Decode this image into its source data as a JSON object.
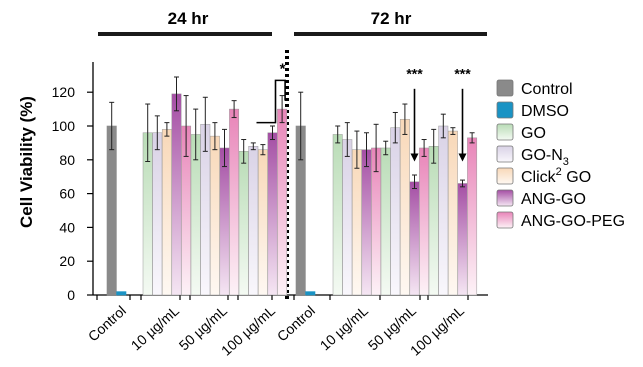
{
  "chart_data": {
    "type": "bar",
    "panels": [
      {
        "label": "24 hr",
        "categories": [
          "Control",
          "10 µg/mL",
          "50 µg/mL",
          "100 µg/mL"
        ]
      },
      {
        "label": "72 hr",
        "categories": [
          "Control",
          "10 µg/mL",
          "50 µg/mL",
          "100 µg/mL"
        ]
      }
    ],
    "ylabel": "Cell Viability (%)",
    "ylim": [
      0,
      135
    ],
    "yticks": [
      0,
      20,
      40,
      60,
      80,
      100,
      120
    ],
    "legend_position": "right",
    "legend": [
      {
        "label": "Control",
        "sub": "",
        "sup": "",
        "rest": "",
        "color_top": "#8a8a8a",
        "color_bottom": "#8a8a8a"
      },
      {
        "label": "DMSO",
        "sub": "",
        "sup": "",
        "rest": "",
        "color_top": "#1a93c4",
        "color_bottom": "#1a93c4"
      },
      {
        "label": "GO",
        "sub": "",
        "sup": "",
        "rest": "",
        "color_top": "#b9dcb6",
        "color_bottom": "#f4faf3"
      },
      {
        "label": "GO-N",
        "sub": "3",
        "sup": "",
        "rest": "",
        "color_top": "#d9d2e6",
        "color_bottom": "#f9f7fc"
      },
      {
        "label": "Click",
        "sub": "",
        "sup": "2",
        "rest": " GO",
        "color_top": "#f8d8b8",
        "color_bottom": "#fef8f2"
      },
      {
        "label": "ANG-GO",
        "sub": "",
        "sup": "",
        "rest": "",
        "color_top": "#a44ea4",
        "color_bottom": "#f5e6f3"
      },
      {
        "label": "ANG-GO-PEG",
        "sub": "",
        "sup": "",
        "rest": "",
        "color_top": "#e884b8",
        "color_bottom": "#fdf2f7"
      }
    ],
    "series": [
      {
        "name": "Control",
        "panel": 0,
        "group": 0,
        "slot": 0,
        "value": 100,
        "error": 14
      },
      {
        "name": "DMSO",
        "panel": 0,
        "group": 0,
        "slot": 1,
        "value": 2,
        "error": 0.5
      },
      {
        "name": "GO",
        "panel": 0,
        "group": 1,
        "slot": 0,
        "value": 96,
        "error": 17
      },
      {
        "name": "GO-N3",
        "panel": 0,
        "group": 1,
        "slot": 1,
        "value": 96,
        "error": 10
      },
      {
        "name": "Click2 GO",
        "panel": 0,
        "group": 1,
        "slot": 2,
        "value": 98,
        "error": 4
      },
      {
        "name": "ANG-GO",
        "panel": 0,
        "group": 1,
        "slot": 3,
        "value": 119,
        "error": 10
      },
      {
        "name": "ANG-GO-PEG",
        "panel": 0,
        "group": 1,
        "slot": 4,
        "value": 100,
        "error": 18
      },
      {
        "name": "GO",
        "panel": 0,
        "group": 2,
        "slot": 0,
        "value": 95,
        "error": 15
      },
      {
        "name": "GO-N3",
        "panel": 0,
        "group": 2,
        "slot": 1,
        "value": 101,
        "error": 16
      },
      {
        "name": "Click2 GO",
        "panel": 0,
        "group": 2,
        "slot": 2,
        "value": 94,
        "error": 8
      },
      {
        "name": "ANG-GO",
        "panel": 0,
        "group": 2,
        "slot": 3,
        "value": 87,
        "error": 11
      },
      {
        "name": "ANG-GO-PEG",
        "panel": 0,
        "group": 2,
        "slot": 4,
        "value": 110,
        "error": 5
      },
      {
        "name": "GO",
        "panel": 0,
        "group": 3,
        "slot": 0,
        "value": 85,
        "error": 7
      },
      {
        "name": "GO-N3",
        "panel": 0,
        "group": 3,
        "slot": 1,
        "value": 88,
        "error": 2
      },
      {
        "name": "Click2 GO",
        "panel": 0,
        "group": 3,
        "slot": 2,
        "value": 86,
        "error": 3
      },
      {
        "name": "ANG-GO",
        "panel": 0,
        "group": 3,
        "slot": 3,
        "value": 96,
        "error": 4
      },
      {
        "name": "ANG-GO-PEG",
        "panel": 0,
        "group": 3,
        "slot": 4,
        "value": 110,
        "error": 8
      },
      {
        "name": "Control",
        "panel": 1,
        "group": 0,
        "slot": 0,
        "value": 100,
        "error": 20
      },
      {
        "name": "DMSO",
        "panel": 1,
        "group": 0,
        "slot": 1,
        "value": 2,
        "error": 0.5
      },
      {
        "name": "GO",
        "panel": 1,
        "group": 1,
        "slot": 0,
        "value": 95,
        "error": 5
      },
      {
        "name": "GO-N3",
        "panel": 1,
        "group": 1,
        "slot": 1,
        "value": 92,
        "error": 10
      },
      {
        "name": "Click2 GO",
        "panel": 1,
        "group": 1,
        "slot": 2,
        "value": 86,
        "error": 11
      },
      {
        "name": "ANG-GO",
        "panel": 1,
        "group": 1,
        "slot": 3,
        "value": 86,
        "error": 10
      },
      {
        "name": "ANG-GO-PEG",
        "panel": 1,
        "group": 1,
        "slot": 4,
        "value": 87,
        "error": 14
      },
      {
        "name": "GO",
        "panel": 1,
        "group": 2,
        "slot": 0,
        "value": 87,
        "error": 4
      },
      {
        "name": "GO-N3",
        "panel": 1,
        "group": 2,
        "slot": 1,
        "value": 99,
        "error": 9
      },
      {
        "name": "Click2 GO",
        "panel": 1,
        "group": 2,
        "slot": 2,
        "value": 104,
        "error": 9
      },
      {
        "name": "ANG-GO",
        "panel": 1,
        "group": 2,
        "slot": 3,
        "value": 67,
        "error": 4
      },
      {
        "name": "ANG-GO-PEG",
        "panel": 1,
        "group": 2,
        "slot": 4,
        "value": 87,
        "error": 5
      },
      {
        "name": "GO",
        "panel": 1,
        "group": 3,
        "slot": 0,
        "value": 88,
        "error": 10
      },
      {
        "name": "GO-N3",
        "panel": 1,
        "group": 3,
        "slot": 1,
        "value": 100,
        "error": 7
      },
      {
        "name": "Click2 GO",
        "panel": 1,
        "group": 3,
        "slot": 2,
        "value": 97,
        "error": 2
      },
      {
        "name": "ANG-GO",
        "panel": 1,
        "group": 3,
        "slot": 3,
        "value": 66,
        "error": 2
      },
      {
        "name": "ANG-GO-PEG",
        "panel": 1,
        "group": 3,
        "slot": 4,
        "value": 93,
        "error": 3
      }
    ],
    "annotations": [
      {
        "text": "*",
        "type": "bracket",
        "panel": 0,
        "group": 3,
        "from_slot": 3,
        "to_slot": 4
      },
      {
        "text": "***",
        "type": "arrow",
        "panel": 1,
        "group": 2,
        "slot": 3
      },
      {
        "text": "***",
        "type": "arrow",
        "panel": 1,
        "group": 3,
        "slot": 3
      }
    ]
  }
}
